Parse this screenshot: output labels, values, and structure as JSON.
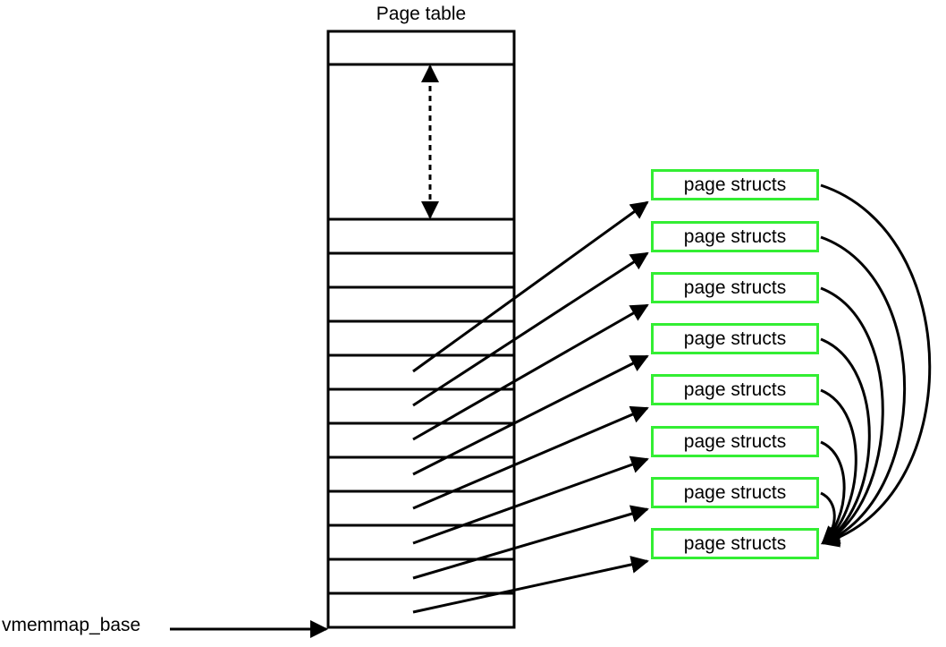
{
  "title": "Page table",
  "base_label": "vmemmap_base",
  "page_structs": [
    {
      "label": "page structs"
    },
    {
      "label": "page structs"
    },
    {
      "label": "page structs"
    },
    {
      "label": "page structs"
    },
    {
      "label": "page structs"
    },
    {
      "label": "page structs"
    },
    {
      "label": "page structs"
    },
    {
      "label": "page structs"
    }
  ],
  "colors": {
    "struct_border": "#33ee33",
    "line": "#000000"
  }
}
